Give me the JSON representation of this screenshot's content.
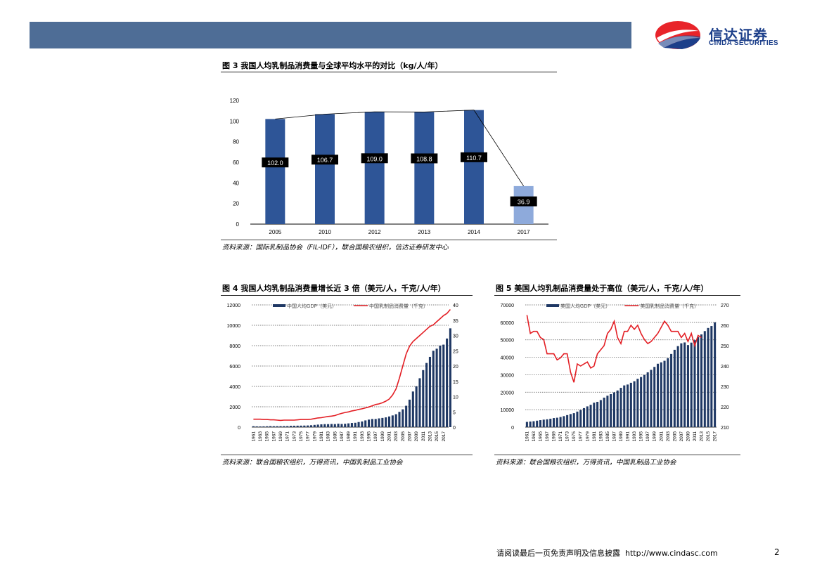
{
  "header": {
    "logo_cn": "信达证券",
    "logo_en": "CINDA SECURITIES"
  },
  "figures": {
    "fig3": {
      "title": "图 3 我国人均乳制品消费量与全球平均水平的对比（kg/人/年）",
      "source": "资料来源：国际乳制品协会（FIL-IDF），联合国粮农组织，信达证券研发中心"
    },
    "fig4": {
      "title": "图 4 我国人均乳制品消费量增长近 3 倍（美元/人，千克/人/年）",
      "source": "资料来源：联合国粮农组织，万得资讯，中国乳制品工业协会"
    },
    "fig5": {
      "title": "图 5 美国人均乳制品消费量处于高位（美元/人，千克/人/年）",
      "source": "资料来源：联合国粮农组织，万得资讯，中国乳制品工业协会"
    }
  },
  "chart_data": [
    {
      "type": "bar",
      "categories": [
        "2005",
        "2010",
        "2012",
        "2013",
        "2014",
        "2017"
      ],
      "values": [
        102.0,
        106.7,
        109.0,
        108.8,
        110.7,
        36.9
      ],
      "labels": [
        "102.0",
        "106.7",
        "109.0",
        "108.8",
        "110.7",
        "36.9"
      ],
      "yticks": [
        "0",
        "20",
        "40",
        "60",
        "80",
        "100",
        "120"
      ],
      "ylim": [
        0,
        120
      ],
      "colors": [
        "#2e5597",
        "#2e5597",
        "#2e5597",
        "#2e5597",
        "#2e5597",
        "#8eaadb"
      ]
    },
    {
      "type": "bar+line",
      "legend": [
        "中国人均GDP（美元）",
        "中国乳制品消费量（千克）"
      ],
      "x_start": 1961,
      "x_end": 2018,
      "xticks": [
        "1961",
        "1963",
        "1965",
        "1967",
        "1969",
        "1971",
        "1973",
        "1975",
        "1977",
        "1979",
        "1981",
        "1983",
        "1985",
        "1987",
        "1989",
        "1991",
        "1993",
        "1995",
        "1997",
        "1999",
        "2001",
        "2003",
        "2005",
        "2007",
        "2009",
        "2011",
        "2013",
        "2015",
        "2017"
      ],
      "ylim_left": [
        0,
        12000
      ],
      "ylim_right": [
        0,
        40
      ],
      "yticks_left": [
        "0",
        "2000",
        "4000",
        "6000",
        "8000",
        "10000",
        "12000"
      ],
      "yticks_right": [
        "0",
        "5",
        "10",
        "15",
        "20",
        "25",
        "30",
        "35",
        "40"
      ],
      "bars": [
        90,
        75,
        70,
        75,
        85,
        100,
        90,
        95,
        95,
        100,
        105,
        130,
        140,
        145,
        150,
        155,
        165,
        185,
        220,
        250,
        275,
        295,
        295,
        310,
        300,
        340,
        310,
        330,
        370,
        410,
        430,
        500,
        560,
        660,
        740,
        800,
        800,
        860,
        905,
        960,
        1050,
        1150,
        1270,
        1500,
        1750,
        2100,
        2700,
        3500,
        4000,
        4800,
        5600,
        6300,
        6900,
        7500,
        7700,
        8000,
        8100,
        8700,
        9700
      ],
      "line": [
        2.6,
        2.6,
        2.6,
        2.5,
        2.5,
        2.4,
        2.4,
        2.3,
        2.2,
        2.3,
        2.3,
        2.3,
        2.3,
        2.4,
        2.5,
        2.5,
        2.5,
        2.6,
        2.8,
        3,
        3.1,
        3.3,
        3.5,
        3.6,
        3.8,
        4.2,
        4.5,
        4.8,
        5,
        5.3,
        5.5,
        5.8,
        6,
        6.3,
        6.6,
        7,
        7.4,
        7.6,
        8,
        8.5,
        9.2,
        10.5,
        12.5,
        16,
        20,
        24,
        26.5,
        28,
        29,
        30,
        31,
        32,
        33,
        33.5,
        34.5,
        35.5,
        36.5,
        37.2,
        38.5
      ],
      "colors": [
        "#1f3864",
        "#e31e24"
      ]
    },
    {
      "type": "bar+line",
      "legend": [
        "美国人均GDP（美元）",
        "美国乳制品消费量（千克）"
      ],
      "x_start": 1961,
      "x_end": 2017,
      "xticks": [
        "1961",
        "1963",
        "1965",
        "1967",
        "1969",
        "1971",
        "1973",
        "1975",
        "1977",
        "1979",
        "1981",
        "1983",
        "1985",
        "1987",
        "1989",
        "1991",
        "1993",
        "1995",
        "1997",
        "1999",
        "2001",
        "2003",
        "2005",
        "2007",
        "2009",
        "2011",
        "2013",
        "2015",
        "2017"
      ],
      "ylim_left": [
        0,
        70000
      ],
      "ylim_right": [
        210,
        270
      ],
      "yticks_left": [
        "0",
        "10000",
        "20000",
        "30000",
        "40000",
        "50000",
        "60000",
        "70000"
      ],
      "yticks_right": [
        "210",
        "220",
        "230",
        "240",
        "250",
        "260",
        "270"
      ],
      "bars": [
        3000,
        3200,
        3400,
        3700,
        4000,
        4300,
        4500,
        4800,
        5200,
        5400,
        5800,
        6300,
        6900,
        7500,
        8000,
        8900,
        9800,
        10900,
        11900,
        12800,
        14000,
        14500,
        15500,
        16900,
        18000,
        18900,
        19900,
        21000,
        22500,
        23900,
        24400,
        25400,
        26300,
        27700,
        28700,
        29900,
        31400,
        32800,
        34500,
        36300,
        37100,
        38000,
        39500,
        41900,
        44300,
        46400,
        48000,
        48500,
        47000,
        48400,
        49800,
        51600,
        53100,
        55000,
        56800,
        57900,
        60000
      ],
      "line": [
        265,
        256,
        257,
        257,
        254,
        253,
        246,
        246,
        246,
        243,
        244,
        246,
        246,
        237,
        232,
        241,
        240,
        241,
        242,
        239,
        240,
        246,
        248,
        250,
        256,
        258,
        262,
        254,
        251,
        257,
        257,
        260,
        258,
        260,
        256,
        253,
        251,
        252,
        254,
        256,
        259,
        262,
        260,
        257,
        257,
        257,
        254,
        256,
        252,
        256,
        250,
        255,
        254,
        null,
        null,
        null,
        null
      ],
      "colors": [
        "#1f3864",
        "#e31e24"
      ]
    }
  ],
  "footer": {
    "disclaimer": "请阅读最后一页免责声明及信息披露",
    "url": "http://www.cindasc.com",
    "page_number": "2"
  }
}
